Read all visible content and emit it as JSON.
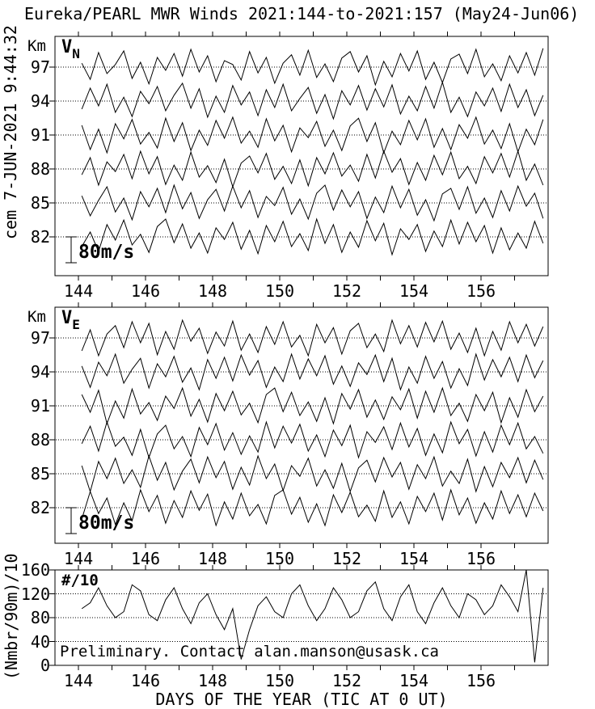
{
  "title": "Eureka/PEARL MWR Winds 2021:144-to-2021:157 (May24-Jun06)",
  "timestamp": "cem 7-JUN-2021 9:44:32",
  "xaxis_title": "DAYS OF THE YEAR (TIC AT 0 UT)",
  "chart_data": [
    {
      "id": "vn",
      "type": "line",
      "panel_label": "V",
      "panel_label_sub": "N",
      "ylabel": "Km",
      "units": "m/s",
      "yticks": [
        97,
        94,
        91,
        88,
        85,
        82
      ],
      "xlim": [
        143.3,
        158.0
      ],
      "xticks_labeled": [
        144,
        146,
        148,
        150,
        152,
        154,
        156
      ],
      "xticks_minor": [
        144,
        145,
        146,
        147,
        148,
        149,
        150,
        151,
        152,
        153,
        154,
        155,
        156,
        157
      ],
      "scale_bar": {
        "label": "80m/s",
        "mps": 80
      },
      "x_start": 144.1,
      "x_step": 0.25,
      "series": [
        {
          "altitude_km": 97,
          "values": [
            12,
            -38,
            45,
            -20,
            8,
            50,
            -35,
            15,
            -52,
            30,
            -10,
            42,
            -28,
            55,
            -15,
            35,
            -45,
            20,
            8,
            -40,
            48,
            -18,
            30,
            -50,
            12,
            38,
            -25,
            52,
            -32,
            10,
            -45,
            28,
            48,
            -15,
            35,
            -55,
            18,
            -30,
            42,
            -12,
            50,
            -38,
            15,
            -48,
            25,
            40,
            -20,
            55,
            -30,
            10,
            -42,
            35,
            -18,
            45,
            -25,
            58
          ]
        },
        {
          "altitude_km": 94,
          "values": [
            -25,
            40,
            -15,
            52,
            -35,
            12,
            -48,
            30,
            -8,
            45,
            -30,
            18,
            55,
            -22,
            38,
            -50,
            15,
            -35,
            48,
            -12,
            28,
            -45,
            35,
            -20,
            52,
            -30,
            8,
            42,
            -38,
            20,
            -55,
            32,
            -12,
            48,
            -28,
            38,
            -18,
            50,
            -40,
            15,
            -30,
            45,
            -22,
            58,
            -35,
            12,
            -48,
            28,
            -15,
            40,
            -32,
            52,
            -20,
            35,
            -45,
            18
          ]
        },
        {
          "altitude_km": 91,
          "values": [
            30,
            -45,
            18,
            -55,
            35,
            -12,
            48,
            -28,
            8,
            -40,
            52,
            -20,
            38,
            -48,
            15,
            -32,
            45,
            -10,
            55,
            -25,
            12,
            -38,
            50,
            -18,
            30,
            -52,
            22,
            -8,
            42,
            -35,
            15,
            -48,
            28,
            52,
            -20,
            38,
            -55,
            12,
            -30,
            45,
            -15,
            50,
            -38,
            20,
            -45,
            32,
            -10,
            55,
            -28,
            15,
            -42,
            35,
            -52,
            18,
            -30,
            48
          ]
        },
        {
          "altitude_km": 88,
          "values": [
            -18,
            35,
            -50,
            22,
            -8,
            45,
            -30,
            55,
            -15,
            38,
            -48,
            12,
            -35,
            52,
            -25,
            10,
            -42,
            30,
            -55,
            18,
            40,
            -12,
            48,
            -32,
            8,
            -45,
            28,
            -52,
            35,
            -15,
            50,
            -22,
            12,
            -38,
            45,
            -28,
            55,
            -10,
            32,
            -48,
            20,
            -35,
            42,
            -18,
            52,
            -30,
            8,
            -45,
            38,
            -12,
            48,
            -25,
            55,
            -35,
            15,
            -50
          ]
        },
        {
          "altitude_km": 85,
          "values": [
            22,
            -40,
            8,
            50,
            -28,
            15,
            -52,
            35,
            -12,
            45,
            -30,
            55,
            -18,
            32,
            -48,
            10,
            42,
            -25,
            52,
            -15,
            38,
            -45,
            20,
            -8,
            48,
            -35,
            12,
            -50,
            30,
            55,
            -22,
            40,
            -12,
            35,
            -48,
            18,
            -30,
            52,
            -15,
            42,
            -38,
            10,
            -55,
            28,
            45,
            -20,
            50,
            -32,
            15,
            -45,
            38,
            -25,
            52,
            -10,
            30,
            -48
          ]
        },
        {
          "altitude_km": 82,
          "values": [
            -30,
            15,
            -45,
            38,
            -10,
            52,
            -25,
            8,
            -48,
            32,
            55,
            -18,
            40,
            -35,
            12,
            -50,
            28,
            -8,
            45,
            -38,
            20,
            -52,
            35,
            -15,
            48,
            -30,
            10,
            -42,
            55,
            -20,
            38,
            -48,
            15,
            -32,
            50,
            -12,
            42,
            -55,
            25,
            -8,
            38,
            -45,
            18,
            -30,
            52,
            -22,
            45,
            -15,
            35,
            -50,
            28,
            -40,
            12,
            -35,
            48,
            -20
          ]
        }
      ]
    },
    {
      "id": "ve",
      "type": "line",
      "panel_label": "V",
      "panel_label_sub": "E",
      "ylabel": "Km",
      "units": "m/s",
      "yticks": [
        97,
        94,
        91,
        88,
        85,
        82
      ],
      "xlim": [
        143.3,
        158.0
      ],
      "xticks_labeled": [
        144,
        146,
        148,
        150,
        152,
        154,
        156
      ],
      "xticks_minor": [
        144,
        145,
        146,
        147,
        148,
        149,
        150,
        151,
        152,
        153,
        154,
        155,
        156,
        157
      ],
      "scale_bar": {
        "label": "80m/s",
        "mps": 80
      },
      "x_start": 144.1,
      "x_step": 0.25,
      "series": [
        {
          "altitude_km": 97,
          "values": [
            -40,
            25,
            -55,
            12,
            38,
            -30,
            50,
            -15,
            45,
            -52,
            20,
            -35,
            55,
            -10,
            30,
            -48,
            18,
            -25,
            52,
            -38,
            12,
            -45,
            35,
            -20,
            50,
            -28,
            8,
            -55,
            42,
            -15,
            32,
            -50,
            22,
            45,
            -30,
            12,
            -42,
            55,
            -18,
            38,
            -28,
            48,
            -12,
            52,
            -35,
            15,
            -45,
            30,
            -55,
            20,
            -38,
            50,
            -15,
            42,
            -25,
            35
          ]
        },
        {
          "altitude_km": 94,
          "values": [
            18,
            -48,
            30,
            -12,
            55,
            -35,
            8,
            42,
            -50,
            25,
            -15,
            48,
            -32,
            12,
            -55,
            38,
            -20,
            45,
            -28,
            52,
            -10,
            35,
            -48,
            15,
            -30,
            55,
            -22,
            40,
            -12,
            50,
            -38,
            18,
            -45,
            28,
            -8,
            52,
            -30,
            42,
            -55,
            15,
            -35,
            48,
            -20,
            32,
            -50,
            10,
            -42,
            55,
            -25,
            38,
            -15,
            45,
            -30,
            52,
            -18,
            35
          ]
        },
        {
          "altitude_km": 91,
          "values": [
            35,
            -20,
            48,
            -55,
            15,
            -38,
            52,
            -25,
            10,
            -45,
            30,
            -8,
            55,
            -32,
            20,
            -50,
            38,
            -15,
            45,
            -28,
            8,
            -52,
            35,
            55,
            -18,
            42,
            -30,
            12,
            -48,
            25,
            -55,
            38,
            -10,
            50,
            -35,
            18,
            -42,
            28,
            -12,
            52,
            -38,
            45,
            -20,
            55,
            -30,
            8,
            -48,
            35,
            -15,
            42,
            -52,
            25,
            -35,
            50,
            -18,
            30
          ]
        },
        {
          "altitude_km": 88,
          "values": [
            -12,
            42,
            -35,
            55,
            -20,
            8,
            -48,
            32,
            -55,
            18,
            45,
            -28,
            10,
            -52,
            38,
            -15,
            50,
            -32,
            22,
            -45,
            12,
            -38,
            55,
            -25,
            42,
            -10,
            48,
            -35,
            15,
            -52,
            30,
            -18,
            45,
            -55,
            25,
            -8,
            40,
            -30,
            52,
            -22,
            35,
            -48,
            18,
            -40,
            55,
            -12,
            32,
            -50,
            25,
            -38,
            45,
            -15,
            52,
            -28,
            10,
            -42
          ]
        },
        {
          "altitude_km": 85,
          "values": [
            25,
            -55,
            38,
            -15,
            48,
            -30,
            12,
            -42,
            55,
            -20,
            35,
            -50,
            8,
            45,
            -28,
            52,
            -12,
            38,
            -48,
            20,
            -35,
            55,
            -15,
            30,
            -52,
            25,
            -8,
            48,
            -38,
            12,
            -45,
            32,
            -55,
            18,
            42,
            -25,
            50,
            -10,
            35,
            -48,
            28,
            -15,
            52,
            -38,
            8,
            -30,
            45,
            -55,
            22,
            -40,
            35,
            -12,
            50,
            -28,
            42,
            -18
          ]
        },
        {
          "altitude_km": 82,
          "values": [
            -35,
            50,
            -18,
            30,
            -52,
            15,
            -40,
            55,
            -12,
            38,
            -48,
            22,
            -30,
            52,
            -8,
            42,
            -55,
            18,
            -35,
            45,
            -25,
            10,
            -50,
            38,
            55,
            -20,
            32,
            -45,
            12,
            -55,
            40,
            -15,
            48,
            -28,
            8,
            -42,
            52,
            -30,
            18,
            -50,
            35,
            -12,
            45,
            -38,
            55,
            -22,
            30,
            -48,
            15,
            -35,
            52,
            -18,
            40,
            -28,
            45,
            -10
          ]
        }
      ]
    },
    {
      "id": "count",
      "type": "line",
      "panel_label": "#/10",
      "ylabel": "(Nmbr/90m)/10",
      "ylim": [
        0,
        160
      ],
      "yticks": [
        160,
        120,
        80,
        40,
        0
      ],
      "gridlines": [
        40,
        80,
        120
      ],
      "xlim": [
        143.3,
        158.0
      ],
      "xticks_labeled": [
        144,
        146,
        148,
        150,
        152,
        154,
        156
      ],
      "xticks_minor": [
        144,
        145,
        146,
        147,
        148,
        149,
        150,
        151,
        152,
        153,
        154,
        155,
        156,
        157
      ],
      "annotation": "Preliminary. Contact alan.manson@usask.ca",
      "x_start": 144.1,
      "x_step": 0.25,
      "values": [
        95,
        105,
        130,
        100,
        80,
        90,
        135,
        125,
        85,
        75,
        110,
        130,
        95,
        70,
        105,
        120,
        85,
        60,
        95,
        10,
        60,
        100,
        115,
        90,
        80,
        120,
        135,
        100,
        75,
        95,
        130,
        110,
        80,
        90,
        125,
        140,
        95,
        75,
        115,
        135,
        90,
        70,
        105,
        130,
        100,
        80,
        120,
        110,
        85,
        100,
        135,
        115,
        90,
        160,
        5,
        130
      ]
    }
  ]
}
